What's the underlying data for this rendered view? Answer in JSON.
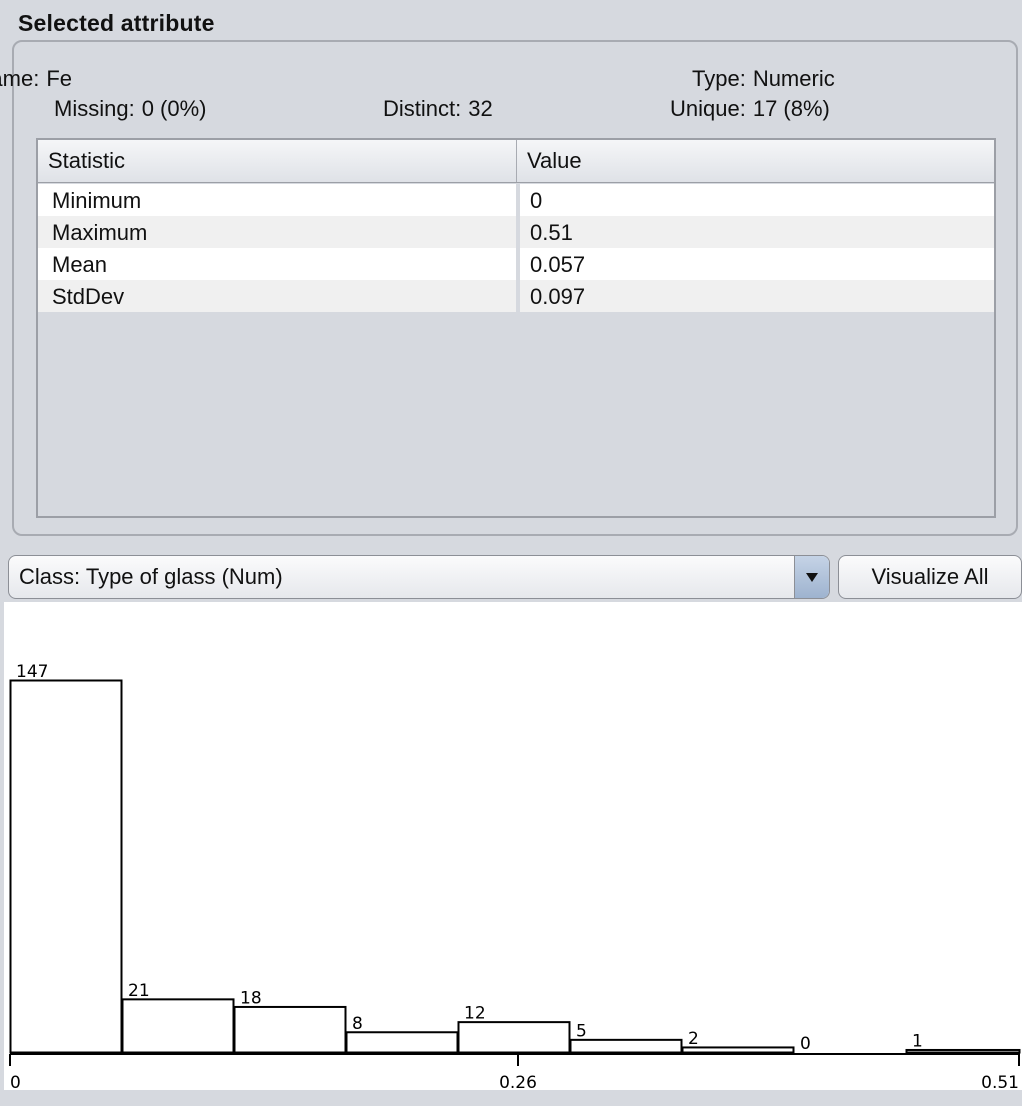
{
  "section_title": "Selected attribute",
  "attribute": {
    "name_label": "Name:",
    "name_value": "Fe",
    "type_label": "Type:",
    "type_value": "Numeric",
    "missing_label": "Missing:",
    "missing_value": "0 (0%)",
    "distinct_label": "Distinct:",
    "distinct_value": "32",
    "unique_label": "Unique:",
    "unique_value": "17 (8%)"
  },
  "stats_table": {
    "headers": [
      "Statistic",
      "Value"
    ],
    "rows": [
      {
        "statistic": "Minimum",
        "value": "0"
      },
      {
        "statistic": "Maximum",
        "value": "0.51"
      },
      {
        "statistic": "Mean",
        "value": "0.057"
      },
      {
        "statistic": "StdDev",
        "value": "0.097"
      }
    ]
  },
  "class_selector": {
    "selected": "Class: Type of glass (Num)",
    "icon": "chevron-down-icon"
  },
  "visualize_all_label": "Visualize All",
  "chart_data": {
    "type": "bar",
    "x_range": [
      0,
      0.51
    ],
    "tick_labels": [
      "0",
      "0.26",
      "0.51"
    ],
    "values": [
      147,
      21,
      18,
      8,
      12,
      5,
      2,
      0,
      1
    ],
    "value_labels": [
      "147",
      "21",
      "18",
      "8",
      "12",
      "5",
      "2",
      "0",
      "1"
    ],
    "ylim": [
      0,
      147
    ],
    "colors": {
      "bar_fill": "#ffffff",
      "bar_stroke": "#000000"
    }
  }
}
